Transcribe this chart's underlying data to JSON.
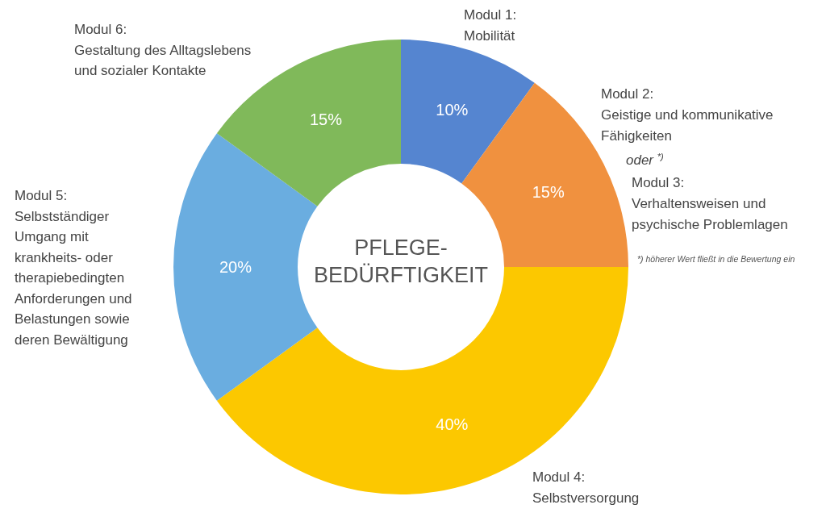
{
  "chart_data": {
    "type": "donut",
    "title": "PFLEGE-\nBEDÜRFTIGKEIT",
    "categories": [
      "Modul 1:\nMobilität",
      "Modul 2:\nGeistige und kommunikative\nFähigkeiten\noder $^{*)}$\nModul 3:\nVerhaltensweisen und\npsychische Problemlagen",
      "Modul 4:\nSelbstversorgung",
      "Modul 5:\nSelbstständiger\nUmgang mit\nkrankheits- oder\ntherapiebedingten\nAnforderungen und\nBelastungen sowie\nderen Bewältigung",
      "Modul 6:\nGestaltung des Alltagslebens\nund sozialer Kontakte"
    ],
    "values": [
      10,
      15,
      40,
      20,
      15
    ],
    "value_labels": [
      "10%",
      "15%",
      "40%",
      "20%",
      "15%"
    ],
    "colors": [
      "#5585d0",
      "#f0913f",
      "#fcc800",
      "#6aade0",
      "#80b95a"
    ],
    "annotations": [
      "*) höherer Wert fließt in die Bewertung ein"
    ]
  }
}
